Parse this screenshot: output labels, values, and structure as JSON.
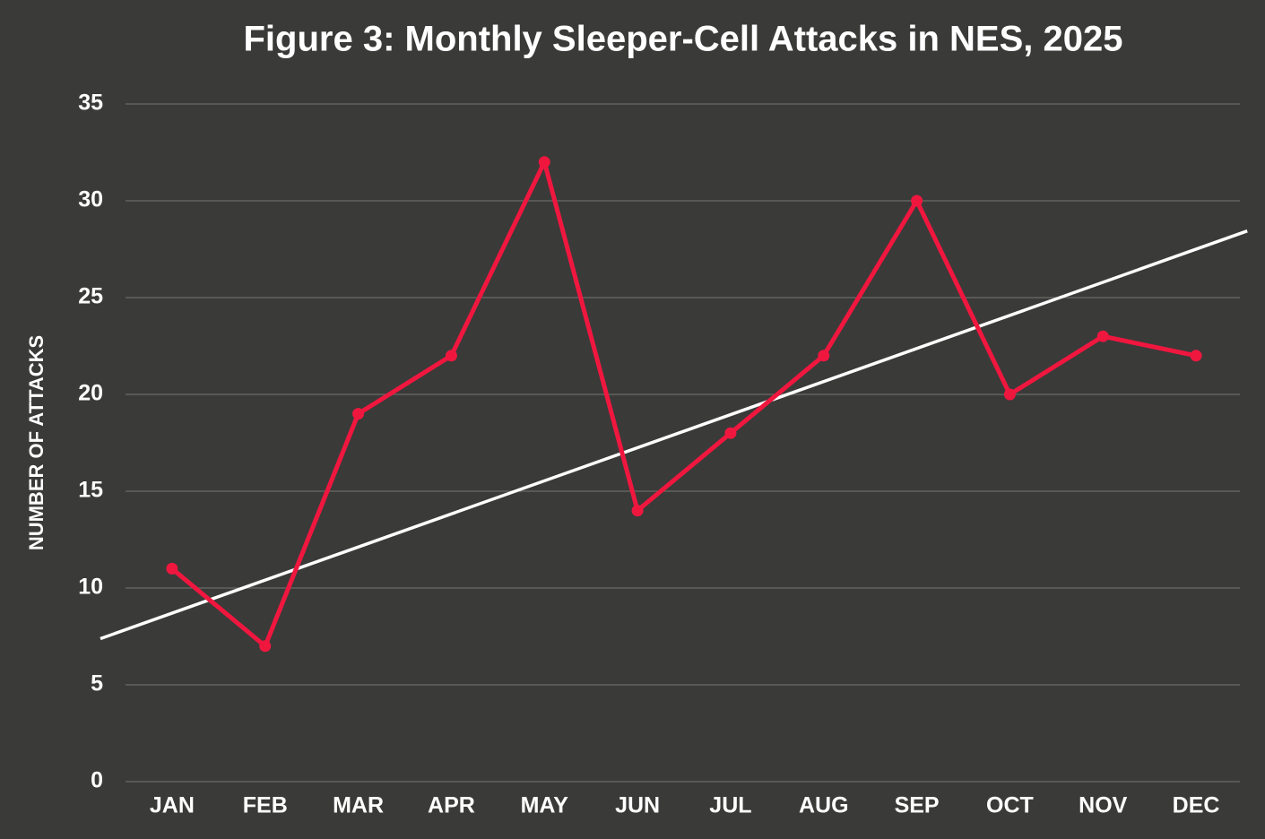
{
  "chart_data": {
    "type": "line",
    "title": "Figure 3: Monthly Sleeper-Cell Attacks in NES, 2025",
    "y_label": "NUMBER OF ATTACKS",
    "categories": [
      "JAN",
      "FEB",
      "MAR",
      "APR",
      "MAY",
      "JUN",
      "JUL",
      "AUG",
      "SEP",
      "OCT",
      "NOV",
      "DEC"
    ],
    "series": [
      {
        "color": "#f0173f",
        "values": [
          11,
          7,
          19,
          22,
          32,
          14,
          18,
          22,
          30,
          20,
          23,
          22
        ]
      }
    ],
    "trendline": {
      "start": 8.7,
      "end": 27.5,
      "color": "#ffffff"
    },
    "ylim": [
      0,
      35
    ],
    "yticks": [
      0,
      5,
      10,
      15,
      20,
      25,
      30,
      35
    ],
    "grid": true
  }
}
